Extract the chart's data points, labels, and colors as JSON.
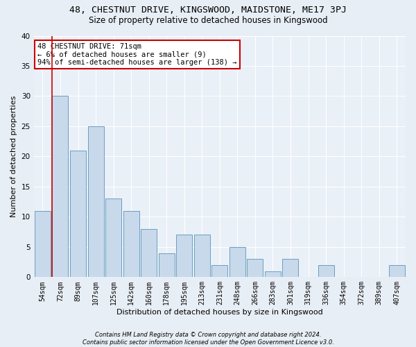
{
  "title1": "48, CHESTNUT DRIVE, KINGSWOOD, MAIDSTONE, ME17 3PJ",
  "title2": "Size of property relative to detached houses in Kingswood",
  "xlabel": "Distribution of detached houses by size in Kingswood",
  "ylabel": "Number of detached properties",
  "categories": [
    "54sqm",
    "72sqm",
    "89sqm",
    "107sqm",
    "125sqm",
    "142sqm",
    "160sqm",
    "178sqm",
    "195sqm",
    "213sqm",
    "231sqm",
    "248sqm",
    "266sqm",
    "283sqm",
    "301sqm",
    "319sqm",
    "336sqm",
    "354sqm",
    "372sqm",
    "389sqm",
    "407sqm"
  ],
  "values": [
    11,
    30,
    21,
    25,
    13,
    11,
    8,
    4,
    7,
    7,
    2,
    5,
    3,
    1,
    3,
    0,
    2,
    0,
    0,
    0,
    2
  ],
  "bar_color": "#c8d9eb",
  "bar_edge_color": "#6a9fc0",
  "highlight_bar_index": 1,
  "highlight_edge_color": "#cc0000",
  "annotation_box_text": "48 CHESTNUT DRIVE: 71sqm\n← 6% of detached houses are smaller (9)\n94% of semi-detached houses are larger (138) →",
  "annotation_box_color": "white",
  "annotation_box_edge_color": "#cc0000",
  "ylim": [
    0,
    40
  ],
  "yticks": [
    0,
    5,
    10,
    15,
    20,
    25,
    30,
    35,
    40
  ],
  "footnote": "Contains HM Land Registry data © Crown copyright and database right 2024.\nContains public sector information licensed under the Open Government Licence v3.0.",
  "bg_color": "#e8eef5",
  "plot_bg_color": "#eaf0f7",
  "grid_color": "white",
  "title1_fontsize": 9.5,
  "title2_fontsize": 8.5,
  "xlabel_fontsize": 8,
  "ylabel_fontsize": 8
}
